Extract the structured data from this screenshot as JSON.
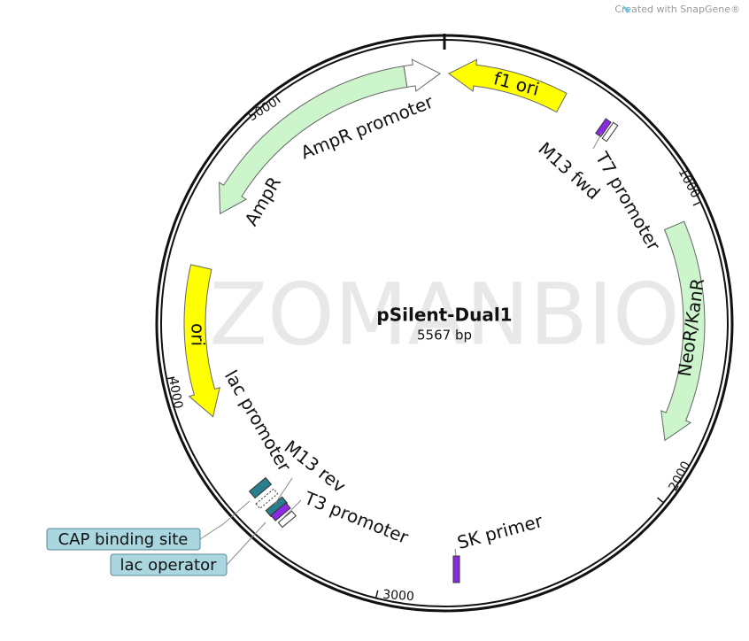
{
  "header": {
    "credit": "Created with SnapGene®"
  },
  "map": {
    "name": "pSilent-Dual1",
    "length": "5567 bp",
    "watermark": "ZOMANBIO",
    "ticks": [
      "1000",
      "2000",
      "3000",
      "4000",
      "5000"
    ],
    "features": [
      "f1 ori",
      "AmpR promoter",
      "AmpR",
      "ori",
      "NeoR/KanR",
      "T7 promoter",
      "M13 fwd",
      "lac promoter",
      "M13 rev",
      "T3 promoter",
      "SK primer"
    ],
    "callouts": [
      "CAP binding site",
      "lac operator"
    ]
  }
}
